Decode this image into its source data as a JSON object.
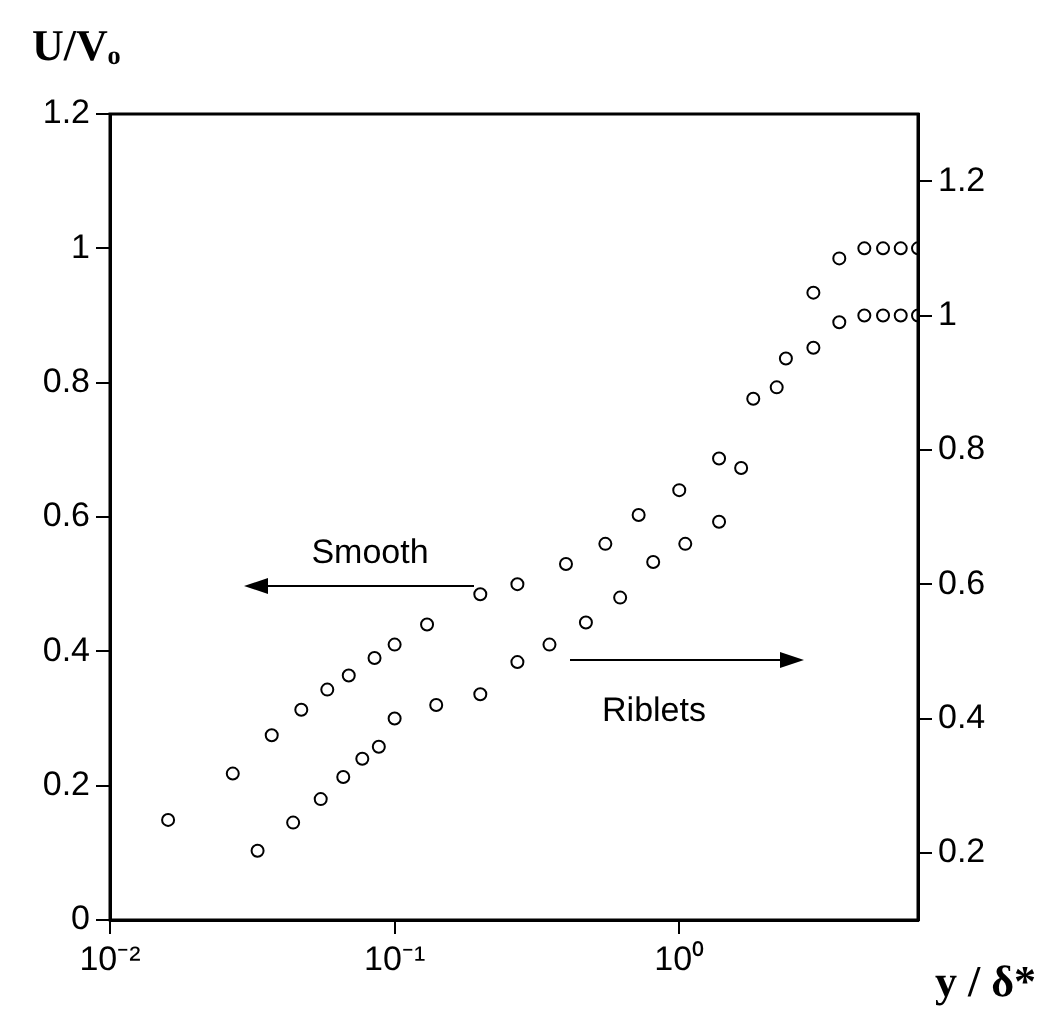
{
  "chart_data": {
    "type": "scatter",
    "xlabel": "y / δ*",
    "ylabel": "U/Vₒ",
    "log": "x",
    "grid": false,
    "legend": false,
    "marker": "circle",
    "xlim": [
      0.01,
      6.9
    ],
    "xticks": [
      {
        "value": 0.01,
        "label": "10⁻²"
      },
      {
        "value": 0.1,
        "label": "10⁻¹"
      },
      {
        "value": 1,
        "label": "10⁰"
      }
    ],
    "ylim": [
      0,
      1.2
    ],
    "yticks": [
      0,
      0.2,
      0.4,
      0.6,
      0.8,
      1,
      1.2
    ],
    "y2lim": [
      0.1,
      1.3
    ],
    "y2ticks": [
      0.2,
      0.4,
      0.6,
      0.8,
      1,
      1.2
    ],
    "series": [
      {
        "name": "Smooth",
        "color": "#000000",
        "x": [
          0.016,
          0.027,
          0.037,
          0.047,
          0.058,
          0.069,
          0.085,
          0.1,
          0.13,
          0.2,
          0.27,
          0.4,
          0.55,
          0.72,
          1.0,
          1.38,
          1.82,
          2.37,
          2.96,
          3.65,
          4.47,
          5.2,
          6.0,
          6.9
        ],
        "values": [
          0.149,
          0.218,
          0.275,
          0.313,
          0.343,
          0.364,
          0.39,
          0.41,
          0.44,
          0.485,
          0.5,
          0.53,
          0.56,
          0.603,
          0.64,
          0.687,
          0.776,
          0.836,
          0.934,
          0.985,
          1.0,
          1.0,
          1.0,
          1.0
        ]
      },
      {
        "name": "Riblets",
        "color": "#000000",
        "axis": "y2",
        "x": [
          0.033,
          0.044,
          0.055,
          0.066,
          0.077,
          0.088,
          0.1,
          0.14,
          0.2,
          0.27,
          0.35,
          0.47,
          0.62,
          0.81,
          1.05,
          1.38,
          1.65,
          2.2,
          2.96,
          3.65,
          4.47,
          5.2,
          6.0,
          6.9
        ],
        "values": [
          0.203,
          0.245,
          0.28,
          0.313,
          0.34,
          0.358,
          0.4,
          0.42,
          0.436,
          0.484,
          0.51,
          0.543,
          0.58,
          0.633,
          0.66,
          0.693,
          0.773,
          0.893,
          0.952,
          0.99,
          1.0,
          1.0,
          1.0,
          1.0
        ]
      }
    ]
  }
}
